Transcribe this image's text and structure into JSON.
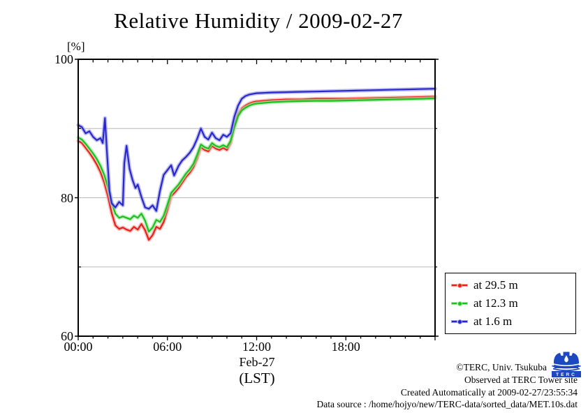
{
  "title": "Relative Humidity / 2009-02-27",
  "y_axis": {
    "unit_label": "[%]"
  },
  "x_axis": {
    "date_label": "Feb-27",
    "timezone_label": "(LST)"
  },
  "footer": {
    "copyright": "©TERC, Univ. Tsukuba",
    "observed": "Observed at TERC Tower site",
    "created": "Created Automatically at 2009-02-27/23:55:34",
    "data_source": "Data source : /home/hojyo/new/TERC-data/sorted_data/MET.10s.dat",
    "logo_text": "TERC"
  },
  "chart_data": {
    "type": "line",
    "title": "Relative Humidity / 2009-02-27",
    "ylabel": "[%]",
    "xlabel": "Feb-27 (LST)",
    "ylim": [
      60,
      100
    ],
    "xlim_hours": [
      0,
      24
    ],
    "grid": true,
    "grid_values": [
      90,
      80,
      70
    ],
    "grid_color": "#b8b8b8",
    "y_ticks": [
      {
        "value": 100,
        "label": "100"
      },
      {
        "value": 80,
        "label": "80"
      },
      {
        "value": 60,
        "label": "60"
      }
    ],
    "y_minor_ticks": [
      90,
      70
    ],
    "x_ticks": [
      {
        "hour": 0,
        "label": "00:00"
      },
      {
        "hour": 6,
        "label": "06:00"
      },
      {
        "hour": 12,
        "label": "12:00"
      },
      {
        "hour": 18,
        "label": "18:00"
      }
    ],
    "x_minor_tick_every_hours": 1,
    "legend_position": "outside-right-bottom",
    "series": [
      {
        "label": "at 29.5 m",
        "color": "#e8201a",
        "halo_color": "#f6a2a0",
        "x": [
          0,
          0.25,
          0.5,
          0.75,
          1,
          1.25,
          1.5,
          1.75,
          2,
          2.25,
          2.5,
          2.75,
          3,
          3.25,
          3.5,
          3.75,
          4,
          4.25,
          4.5,
          4.75,
          5,
          5.25,
          5.5,
          5.75,
          6,
          6.25,
          6.5,
          6.75,
          7,
          7.25,
          7.5,
          7.75,
          8,
          8.25,
          8.5,
          8.75,
          9,
          9.25,
          9.5,
          9.75,
          10,
          10.25,
          10.5,
          10.75,
          11,
          11.25,
          11.5,
          11.75,
          12,
          13,
          14,
          15,
          16,
          17,
          18,
          19,
          20,
          21,
          22,
          23,
          24
        ],
        "values": [
          88.2,
          87.9,
          87.2,
          86.5,
          85.7,
          84.8,
          83.7,
          82.2,
          80.2,
          77.8,
          76.0,
          75.5,
          75.7,
          75.4,
          75.2,
          75.8,
          75.4,
          76.2,
          75.3,
          73.9,
          74.6,
          75.8,
          75.5,
          76.5,
          78.3,
          80.2,
          80.8,
          81.4,
          82.2,
          83.0,
          83.6,
          84.4,
          85.7,
          87.3,
          86.9,
          86.7,
          87.5,
          87.1,
          86.9,
          87.2,
          86.9,
          87.9,
          90.4,
          92.1,
          92.9,
          93.3,
          93.6,
          93.8,
          93.9,
          94.1,
          94.2,
          94.2,
          94.3,
          94.3,
          94.3,
          94.35,
          94.4,
          94.45,
          94.5,
          94.55,
          94.6
        ]
      },
      {
        "label": "at 12.3 m",
        "color": "#1fbf1f",
        "halo_color": "#9fe89f",
        "x": [
          0,
          0.25,
          0.5,
          0.75,
          1,
          1.25,
          1.5,
          1.75,
          2,
          2.25,
          2.5,
          2.75,
          3,
          3.25,
          3.5,
          3.75,
          4,
          4.25,
          4.5,
          4.75,
          5,
          5.25,
          5.5,
          5.75,
          6,
          6.25,
          6.5,
          6.75,
          7,
          7.25,
          7.5,
          7.75,
          8,
          8.25,
          8.5,
          8.75,
          9,
          9.25,
          9.5,
          9.75,
          10,
          10.25,
          10.5,
          10.75,
          11,
          11.25,
          11.5,
          11.75,
          12,
          13,
          14,
          15,
          16,
          17,
          18,
          19,
          20,
          21,
          22,
          23,
          24
        ],
        "values": [
          88.7,
          88.4,
          87.8,
          87.1,
          86.4,
          85.6,
          84.6,
          83.3,
          81.5,
          79.3,
          77.7,
          77.1,
          77.3,
          77.1,
          76.9,
          77.4,
          77.1,
          77.7,
          76.7,
          75.1,
          75.7,
          76.8,
          76.5,
          77.4,
          79.0,
          80.7,
          81.3,
          81.9,
          82.7,
          83.5,
          84.1,
          84.9,
          86.2,
          87.7,
          87.3,
          87.1,
          87.9,
          87.5,
          87.3,
          87.6,
          87.3,
          88.2,
          90.2,
          91.8,
          92.6,
          93.0,
          93.3,
          93.5,
          93.6,
          93.8,
          93.9,
          93.95,
          94.0,
          94.0,
          94.05,
          94.1,
          94.15,
          94.2,
          94.25,
          94.3,
          94.35
        ]
      },
      {
        "label": "at 1.6 m",
        "color": "#2727cd",
        "halo_color": "#9f9fe8",
        "x": [
          0,
          0.25,
          0.5,
          0.75,
          1,
          1.25,
          1.5,
          1.65,
          1.8,
          1.95,
          2.1,
          2.25,
          2.5,
          2.75,
          3,
          3.1,
          3.25,
          3.45,
          3.65,
          3.85,
          4,
          4.25,
          4.5,
          4.75,
          5,
          5.25,
          5.5,
          5.75,
          6,
          6.25,
          6.45,
          6.75,
          7,
          7.25,
          7.5,
          7.75,
          8,
          8.25,
          8.5,
          8.75,
          9,
          9.25,
          9.5,
          9.75,
          10,
          10.25,
          10.5,
          10.75,
          11,
          11.25,
          11.5,
          11.75,
          12,
          13,
          14,
          15,
          16,
          17,
          18,
          19,
          20,
          21,
          22,
          23,
          24
        ],
        "values": [
          90.5,
          90.2,
          89.3,
          89.6,
          88.8,
          88.3,
          88.6,
          87.9,
          91.5,
          86.0,
          81.0,
          79.2,
          78.6,
          79.4,
          78.9,
          85.0,
          87.5,
          84.2,
          82.6,
          81.4,
          81.9,
          80.1,
          78.6,
          78.4,
          78.9,
          78.1,
          81.0,
          83.3,
          84.0,
          84.7,
          83.2,
          84.6,
          85.4,
          85.9,
          86.5,
          87.3,
          88.5,
          90.0,
          88.8,
          88.4,
          89.4,
          88.6,
          88.3,
          89.1,
          88.8,
          89.3,
          91.7,
          93.3,
          94.3,
          94.7,
          94.9,
          95.0,
          95.1,
          95.2,
          95.25,
          95.3,
          95.35,
          95.4,
          95.45,
          95.5,
          95.55,
          95.6,
          95.65,
          95.7,
          95.75
        ]
      }
    ]
  }
}
